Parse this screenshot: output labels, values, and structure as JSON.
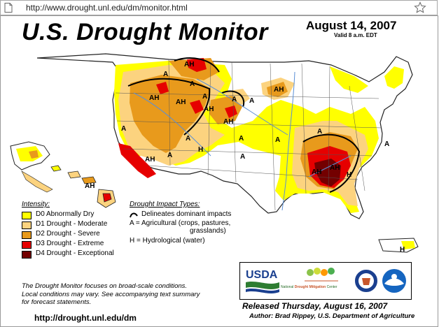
{
  "browser": {
    "url": "http://www.drought.unl.edu/dm/monitor.html"
  },
  "map": {
    "title": "U.S. Drought Monitor",
    "date": "August 14, 2007",
    "valid": "Valid 8 a.m. EDT",
    "region_labels": {
      "l1": "A",
      "l2": "AH",
      "l3": "A",
      "l4": "AH",
      "l5": "AH",
      "l6": "A",
      "l7": "A",
      "l8": "AH",
      "l9": "A",
      "l10": "AH",
      "l11": "A",
      "l12": "AH",
      "l13": "A",
      "l14": "A",
      "l15": "H",
      "l16": "A",
      "l17": "A",
      "l18": "A",
      "l19": "AH",
      "l20": "A",
      "l21": "AH",
      "l22": "A",
      "l23": "H",
      "l24": "AH",
      "l25": "AH",
      "l26": "H"
    },
    "legend": {
      "title": "Intensity:",
      "items": [
        {
          "label": "D0 Abnormally Dry",
          "color": "#ffff00"
        },
        {
          "label": "D1 Drought - Moderate",
          "color": "#fcd37f"
        },
        {
          "label": "D2 Drought - Severe",
          "color": "#e89a1c"
        },
        {
          "label": "D3 Drought - Extreme",
          "color": "#e60000"
        },
        {
          "label": "D4 Drought - Exceptional",
          "color": "#730000"
        }
      ]
    },
    "impact": {
      "title": "Drought Impact Types:",
      "line1": "Delineates dominant impacts",
      "line2": "A = Agricultural (crops, pastures,",
      "line3": "grasslands)",
      "line4": "H = Hydrological (water)"
    },
    "note": {
      "line1": "The Drought Monitor focuses on broad-scale conditions.",
      "line2": "Local conditions may vary. See accompanying text summary",
      "line3": "for forecast statements."
    },
    "link": "http://drought.unl.edu/dm",
    "logos": {
      "usda": "USDA",
      "ndmc_a": "National",
      "ndmc_b": "Drought Mitigation",
      "ndmc_c": "Center"
    },
    "released": "Released Thursday, August 16, 2007",
    "author": "Author: Brad Rippey, U.S. Department of Agriculture"
  },
  "colors": {
    "d0": "#ffff00",
    "d1": "#fcd37f",
    "d2": "#e89a1c",
    "d3": "#e60000",
    "d4": "#730000",
    "water": "#aad3f0",
    "river": "#5a8fd6"
  }
}
